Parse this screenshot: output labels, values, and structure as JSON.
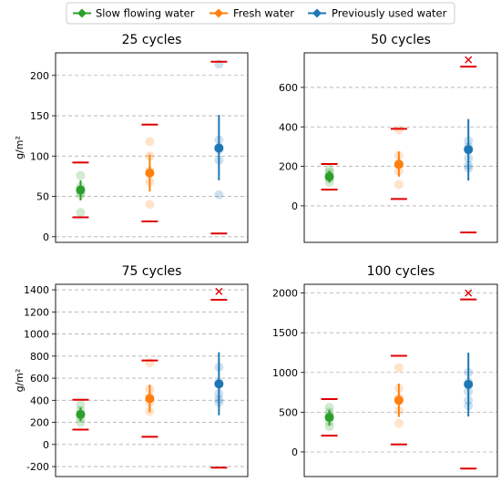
{
  "legend": [
    {
      "name": "Slow flowing water",
      "color": "#2ca02c"
    },
    {
      "name": "Fresh water",
      "color": "#ff7f0e"
    },
    {
      "name": "Previously used water",
      "color": "#1f77b4"
    }
  ],
  "limit_color": "#e00000",
  "outlier_color": "#e00000",
  "chart_data": [
    {
      "type": "scatter",
      "title": "25 cycles",
      "ylabel": "g/m²",
      "ylim": [
        -7,
        228
      ],
      "yticks": [
        0,
        50,
        100,
        150,
        200
      ],
      "grid": true,
      "series": [
        {
          "name": "Slow flowing water",
          "mean": 58,
          "err_low": 45,
          "err_high": 70,
          "limits": [
            24,
            92
          ],
          "points": [
            30,
            52,
            55,
            62,
            76
          ],
          "outliers": []
        },
        {
          "name": "Fresh water",
          "mean": 79,
          "err_low": 56,
          "err_high": 102,
          "limits": [
            19,
            139
          ],
          "points": [
            40,
            68,
            82,
            100,
            118
          ],
          "outliers": []
        },
        {
          "name": "Previously used water",
          "mean": 110,
          "err_low": 70,
          "err_high": 151,
          "limits": [
            4,
            217
          ],
          "points": [
            52,
            95,
            108,
            120,
            214
          ],
          "outliers": []
        }
      ]
    },
    {
      "type": "scatter",
      "title": "50 cycles",
      "ylabel": "",
      "ylim": [
        -185,
        775
      ],
      "yticks": [
        0,
        200,
        400,
        600
      ],
      "grid": true,
      "series": [
        {
          "name": "Slow flowing water",
          "mean": 148,
          "err_low": 118,
          "err_high": 178,
          "limits": [
            82,
            212
          ],
          "points": [
            120,
            140,
            155,
            170,
            185
          ],
          "outliers": []
        },
        {
          "name": "Fresh water",
          "mean": 210,
          "err_low": 148,
          "err_high": 275,
          "limits": [
            35,
            390
          ],
          "points": [
            108,
            175,
            215,
            255,
            385
          ],
          "outliers": []
        },
        {
          "name": "Previously used water",
          "mean": 285,
          "err_low": 128,
          "err_high": 440,
          "limits": [
            -135,
            705
          ],
          "points": [
            190,
            205,
            240,
            300,
            330
          ],
          "outliers": [
            740
          ]
        }
      ]
    },
    {
      "type": "scatter",
      "title": "75 cycles",
      "ylabel": "g/m²",
      "ylim": [
        -290,
        1450
      ],
      "yticks": [
        -200,
        0,
        200,
        400,
        600,
        800,
        1000,
        1200,
        1400
      ],
      "grid": true,
      "series": [
        {
          "name": "Slow flowing water",
          "mean": 272,
          "err_low": 210,
          "err_high": 335,
          "limits": [
            135,
            405
          ],
          "points": [
            200,
            240,
            280,
            310,
            360
          ],
          "outliers": []
        },
        {
          "name": "Fresh water",
          "mean": 415,
          "err_low": 290,
          "err_high": 540,
          "limits": [
            70,
            760
          ],
          "points": [
            300,
            380,
            430,
            500,
            740
          ],
          "outliers": []
        },
        {
          "name": "Previously used water",
          "mean": 548,
          "err_low": 265,
          "err_high": 835,
          "limits": [
            -210,
            1310
          ],
          "points": [
            380,
            410,
            460,
            560,
            700
          ],
          "outliers": [
            1385
          ]
        }
      ]
    },
    {
      "type": "scatter",
      "title": "100 cycles",
      "ylabel": "",
      "ylim": [
        -310,
        2110
      ],
      "yticks": [
        0,
        500,
        1000,
        1500,
        2000
      ],
      "grid": true,
      "series": [
        {
          "name": "Slow flowing water",
          "mean": 435,
          "err_low": 335,
          "err_high": 530,
          "limits": [
            205,
            665
          ],
          "points": [
            320,
            380,
            450,
            500,
            560
          ],
          "outliers": []
        },
        {
          "name": "Fresh water",
          "mean": 650,
          "err_low": 440,
          "err_high": 860,
          "limits": [
            95,
            1210
          ],
          "points": [
            360,
            520,
            680,
            800,
            1060
          ],
          "outliers": []
        },
        {
          "name": "Previously used water",
          "mean": 850,
          "err_low": 445,
          "err_high": 1250,
          "limits": [
            -210,
            1920
          ],
          "points": [
            580,
            650,
            760,
            880,
            1000
          ],
          "outliers": [
            2000
          ]
        }
      ]
    }
  ]
}
